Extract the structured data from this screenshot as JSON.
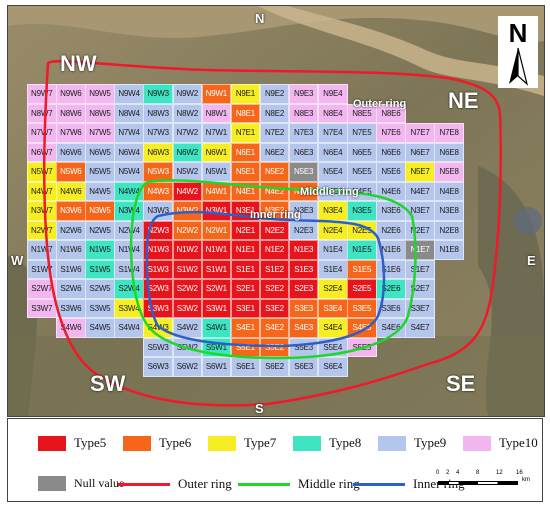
{
  "map": {
    "directions": {
      "nw": "NW",
      "ne": "NE",
      "sw": "SW",
      "se": "SE",
      "n": "N",
      "s": "S",
      "w": "W",
      "e": "E",
      "north_arrow": "N"
    },
    "ring_labels": {
      "outer": "Outer ring",
      "middle": "Middle ring",
      "inner": "Inner ring"
    },
    "colors": {
      "Type5": "#e8141c",
      "Type6": "#f5661a",
      "Type7": "#f6ee22",
      "Type8": "#3fe5c2",
      "Type9": "#b5c6ec",
      "Type10": "#f2b7ef",
      "Null value": "#8a8a8a",
      "Outer ring": "#f0192a",
      "Middle ring": "#1fd62a",
      "Inner ring": "#2d5fc7"
    },
    "rows": [
      {
        "cells": [
          [
            "N9W7",
            "Type10"
          ],
          [
            "N9W6",
            "Type10"
          ],
          [
            "N9W5",
            "Type10"
          ],
          [
            "N9W4",
            "Type9"
          ],
          [
            "N9W3",
            "Type8"
          ],
          [
            "N9W2",
            "Type9"
          ],
          [
            "N9W1",
            "Type6"
          ],
          [
            "N9E1",
            "Type7"
          ],
          [
            "N9E2",
            "Type9"
          ],
          [
            "N9E3",
            "Type10"
          ],
          [
            "N9E4",
            "Type10"
          ]
        ]
      },
      {
        "cells": [
          [
            "N8W7",
            "Type10"
          ],
          [
            "N8W6",
            "Type10"
          ],
          [
            "N8W5",
            "Type10"
          ],
          [
            "N8W4",
            "Type9"
          ],
          [
            "N8W3",
            "Type9"
          ],
          [
            "N8W2",
            "Type9"
          ],
          [
            "N8W1",
            "Type10"
          ],
          [
            "N8E1",
            "Type6"
          ],
          [
            "N8E2",
            "Type9"
          ],
          [
            "N8E3",
            "Type10"
          ],
          [
            "N8E4",
            "Type10"
          ],
          [
            "N8E5",
            "Type10"
          ],
          [
            "N8E6",
            "Type10"
          ]
        ]
      },
      {
        "cells": [
          [
            "N7W7",
            "Type10"
          ],
          [
            "N7W6",
            "Type10"
          ],
          [
            "N7W5",
            "Type10"
          ],
          [
            "N7W4",
            "Type9"
          ],
          [
            "N7W3",
            "Type9"
          ],
          [
            "N7W2",
            "Type9"
          ],
          [
            "N7W1",
            "Type9"
          ],
          [
            "N7E1",
            "Type7"
          ],
          [
            "N7E2",
            "Type9"
          ],
          [
            "N7E3",
            "Type9"
          ],
          [
            "N7E4",
            "Type9"
          ],
          [
            "N7E5",
            "Type9"
          ],
          [
            "N7E6",
            "Type10"
          ],
          [
            "N7E7",
            "Type10"
          ],
          [
            "N7E8",
            "Type10"
          ]
        ]
      },
      {
        "cells": [
          [
            "N6W7",
            "Type10"
          ],
          [
            "N6W6",
            "Type9"
          ],
          [
            "N6W5",
            "Type9"
          ],
          [
            "N6W4",
            "Type9"
          ],
          [
            "N6W3",
            "Type7"
          ],
          [
            "N6W2",
            "Type8"
          ],
          [
            "N6W1",
            "Type7"
          ],
          [
            "N6E1",
            "Type6"
          ],
          [
            "N6E2",
            "Type9"
          ],
          [
            "N6E3",
            "Type9"
          ],
          [
            "N6E4",
            "Type9"
          ],
          [
            "N6E5",
            "Type9"
          ],
          [
            "N6E6",
            "Type9"
          ],
          [
            "N6E7",
            "Type9"
          ],
          [
            "N6E8",
            "Type9"
          ]
        ]
      },
      {
        "cells": [
          [
            "N5W7",
            "Type7"
          ],
          [
            "N5W6",
            "Type6"
          ],
          [
            "N5W5",
            "Type9"
          ],
          [
            "N5W4",
            "Type9"
          ],
          [
            "N5W3",
            "Type6"
          ],
          [
            "N5W2",
            "Type9"
          ],
          [
            "N5W1",
            "Type9"
          ],
          [
            "N5E1",
            "Type6"
          ],
          [
            "N5E2",
            "Type6"
          ],
          [
            "N5E3",
            "Null value"
          ],
          [
            "N5E4",
            "Type9"
          ],
          [
            "N5E5",
            "Type9"
          ],
          [
            "N5E6",
            "Type9"
          ],
          [
            "N5E7",
            "Type7"
          ],
          [
            "N5E8",
            "Type10"
          ]
        ]
      },
      {
        "cells": [
          [
            "N4W7",
            "Type7"
          ],
          [
            "N4W6",
            "Type7"
          ],
          [
            "N4W5",
            "Type9"
          ],
          [
            "N4W4",
            "Type8"
          ],
          [
            "N4W3",
            "Type6"
          ],
          [
            "N4W2",
            "Type5"
          ],
          [
            "N4W1",
            "Type6"
          ],
          [
            "N4E1",
            "Type6"
          ],
          [
            "N4E2",
            "Type6"
          ],
          [
            "N4E3",
            "Type6"
          ],
          [
            "N4E4",
            "Type9"
          ],
          [
            "N4E5",
            "Type9"
          ],
          [
            "N4E6",
            "Type9"
          ],
          [
            "N4E7",
            "Type9"
          ],
          [
            "N4E8",
            "Type9"
          ]
        ]
      },
      {
        "cells": [
          [
            "N3W7",
            "Type7"
          ],
          [
            "N3W6",
            "Type6"
          ],
          [
            "N3W5",
            "Type6"
          ],
          [
            "N3W4",
            "Type8"
          ],
          [
            "N3W3",
            "Type9"
          ],
          [
            "N3W2",
            "Type6"
          ],
          [
            "N3W1",
            "Type5"
          ],
          [
            "N3E1",
            "Type5"
          ],
          [
            "N3E2",
            "Type6"
          ],
          [
            "N3E3",
            "Type9"
          ],
          [
            "N3E4",
            "Type7"
          ],
          [
            "N3E5",
            "Type8"
          ],
          [
            "N3E6",
            "Type9"
          ],
          [
            "N3E7",
            "Type9"
          ],
          [
            "N3E8",
            "Type9"
          ]
        ]
      },
      {
        "cells": [
          [
            "N2W7",
            "Type7"
          ],
          [
            "N2W6",
            "Type9"
          ],
          [
            "N2W5",
            "Type9"
          ],
          [
            "N2W4",
            "Type9"
          ],
          [
            "N2W3",
            "Type5"
          ],
          [
            "N2W2",
            "Type6"
          ],
          [
            "N2W1",
            "Type6"
          ],
          [
            "N2E1",
            "Type5"
          ],
          [
            "N2E2",
            "Type5"
          ],
          [
            "N2E3",
            "Type9"
          ],
          [
            "N2E4",
            "Type7"
          ],
          [
            "N2E5",
            "Type7"
          ],
          [
            "N2E6",
            "Type9"
          ],
          [
            "N2E7",
            "Type9"
          ],
          [
            "N2E8",
            "Type9"
          ]
        ]
      },
      {
        "cells": [
          [
            "N1W7",
            "Type9"
          ],
          [
            "N1W6",
            "Type9"
          ],
          [
            "N1W5",
            "Type8"
          ],
          [
            "N1W4",
            "Type9"
          ],
          [
            "N1W3",
            "Type5"
          ],
          [
            "N1W2",
            "Type5"
          ],
          [
            "N1W1",
            "Type5"
          ],
          [
            "N1E1",
            "Type5"
          ],
          [
            "N1E2",
            "Type5"
          ],
          [
            "N1E3",
            "Type5"
          ],
          [
            "N1E4",
            "Type9"
          ],
          [
            "N1E5",
            "Type8"
          ],
          [
            "N1E6",
            "Type9"
          ],
          [
            "N1E7",
            "Null value"
          ],
          [
            "N1E8",
            "Type9"
          ]
        ]
      },
      {
        "cells": [
          [
            "S1W7",
            "Type9"
          ],
          [
            "S1W6",
            "Type9"
          ],
          [
            "S1W5",
            "Type8"
          ],
          [
            "S1W4",
            "Type9"
          ],
          [
            "S1W3",
            "Type5"
          ],
          [
            "S1W2",
            "Type5"
          ],
          [
            "S1W1",
            "Type5"
          ],
          [
            "S1E1",
            "Type5"
          ],
          [
            "S1E2",
            "Type5"
          ],
          [
            "S1E3",
            "Type5"
          ],
          [
            "S1E4",
            "Type9"
          ],
          [
            "S1E5",
            "Type6"
          ],
          [
            "S1E6",
            "Type9"
          ],
          [
            "S1E7",
            "Type9"
          ]
        ]
      },
      {
        "cells": [
          [
            "S2W7",
            "Type10"
          ],
          [
            "S2W6",
            "Type9"
          ],
          [
            "S2W5",
            "Type9"
          ],
          [
            "S2W4",
            "Type8"
          ],
          [
            "S2W3",
            "Type5"
          ],
          [
            "S2W2",
            "Type5"
          ],
          [
            "S2W1",
            "Type5"
          ],
          [
            "S2E1",
            "Type5"
          ],
          [
            "S2E2",
            "Type5"
          ],
          [
            "S2E3",
            "Type5"
          ],
          [
            "S2E4",
            "Type7"
          ],
          [
            "S2E5",
            "Type5"
          ],
          [
            "S2E6",
            "Type8"
          ],
          [
            "S2E7",
            "Type9"
          ]
        ]
      },
      {
        "cells": [
          [
            "S3W7",
            "Type10"
          ],
          [
            "S3W6",
            "Type9"
          ],
          [
            "S3W5",
            "Type9"
          ],
          [
            "S3W4",
            "Type7"
          ],
          [
            "S3W3",
            "Type5"
          ],
          [
            "S3W2",
            "Type5"
          ],
          [
            "S3W1",
            "Type5"
          ],
          [
            "S3E1",
            "Type5"
          ],
          [
            "S3E2",
            "Type5"
          ],
          [
            "S3E3",
            "Type6"
          ],
          [
            "S3E4",
            "Type6"
          ],
          [
            "S3E5",
            "Type6"
          ],
          [
            "S3E6",
            "Type9"
          ],
          [
            "S3E7",
            "Type9"
          ]
        ]
      },
      {
        "cells": [
          [
            "S4W6",
            "Type10"
          ],
          [
            "S4W5",
            "Type9"
          ],
          [
            "S4W4",
            "Type9"
          ],
          [
            "S4W3",
            "Type7"
          ],
          [
            "S4W2",
            "Type9"
          ],
          [
            "S4W1",
            "Type8"
          ],
          [
            "S4E1",
            "Type6"
          ],
          [
            "S4E2",
            "Type6"
          ],
          [
            "S4E3",
            "Type6"
          ],
          [
            "S4E4",
            "Type7"
          ],
          [
            "S4E5",
            "Type6"
          ],
          [
            "S4E6",
            "Type9"
          ],
          [
            "S4E7",
            "Type9"
          ]
        ]
      },
      {
        "cells": [
          [
            "S5W3",
            "Type9"
          ],
          [
            "S5W2",
            "Type9"
          ],
          [
            "S5W1",
            "Type8"
          ],
          [
            "S5E1",
            "Type6"
          ],
          [
            "S5E2",
            "Type6"
          ],
          [
            "S5E3",
            "Type9"
          ],
          [
            "S5E4",
            "Type9"
          ],
          [
            "S5E5",
            "Type10"
          ]
        ]
      },
      {
        "cells": [
          [
            "S6W3",
            "Type9"
          ],
          [
            "S6W2",
            "Type9"
          ],
          [
            "S6W1",
            "Type9"
          ],
          [
            "S6E1",
            "Type9"
          ],
          [
            "S6E2",
            "Type9"
          ],
          [
            "S6E3",
            "Type9"
          ],
          [
            "S6E4",
            "Type9"
          ]
        ]
      }
    ]
  },
  "legend": {
    "types": [
      {
        "label": "Type5",
        "color": "#e8141c"
      },
      {
        "label": "Type6",
        "color": "#f5661a"
      },
      {
        "label": "Type7",
        "color": "#f6ee22"
      },
      {
        "label": "Type8",
        "color": "#3fe5c2"
      },
      {
        "label": "Type9",
        "color": "#b5c6ec"
      },
      {
        "label": "Type10",
        "color": "#f2b7ef"
      }
    ],
    "null_value": {
      "label": "Null value",
      "color": "#8a8a8a"
    },
    "lines": [
      {
        "label": "Outer ring",
        "color": "#f0192a"
      },
      {
        "label": "Middle ring",
        "color": "#1fd62a"
      },
      {
        "label": "Inner ring",
        "color": "#2d5fc7"
      }
    ],
    "scale": {
      "ticks": [
        "0",
        "2",
        "4",
        "8",
        "12",
        "16"
      ],
      "unit": "km"
    }
  }
}
